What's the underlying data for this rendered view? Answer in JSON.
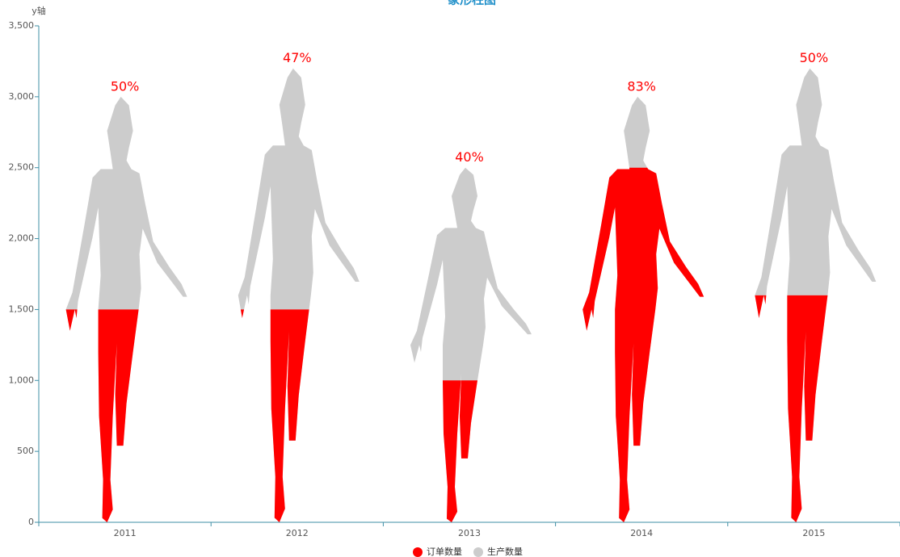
{
  "chart_data": {
    "type": "pictorial-bar",
    "title": "象形柱图",
    "y_axis_label": "y轴",
    "categories": [
      "2011",
      "2012",
      "2013",
      "2014",
      "2015"
    ],
    "series": [
      {
        "name": "订单数量",
        "color": "#ff0000",
        "values": [
          1500,
          1500,
          1000,
          2500,
          1600
        ]
      },
      {
        "name": "生产数量",
        "color": "#cccccc",
        "values": [
          3000,
          3200,
          2500,
          3000,
          3200
        ]
      }
    ],
    "annotations": [
      "50%",
      "47%",
      "40%",
      "83%",
      "50%"
    ],
    "annotation_color": "#ff0000",
    "ylim": [
      0,
      3500
    ],
    "yticks": [
      0,
      500,
      {
        "value": 1000,
        "label": "1,000"
      },
      {
        "value": 1500,
        "label": "1,500"
      },
      {
        "value": 2000,
        "label": "2,000"
      },
      {
        "value": 2500,
        "label": "2,500"
      },
      {
        "value": 3000,
        "label": "3,000"
      },
      {
        "value": 3500,
        "label": "3,500"
      }
    ],
    "legend": "bottom"
  }
}
